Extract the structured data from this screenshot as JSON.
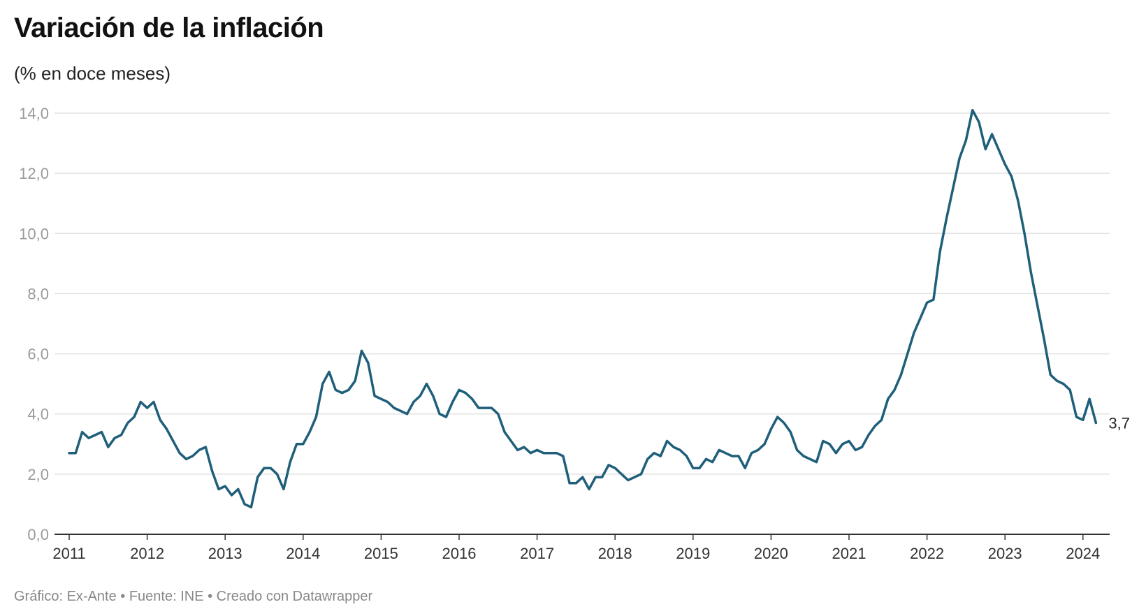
{
  "header": {
    "title": "Variación de la inflación",
    "subtitle": "(% en doce meses)"
  },
  "footer": {
    "source": "Gráfico: Ex-Ante • Fuente: INE • Creado con Datawrapper"
  },
  "colors": {
    "line": "#1f5f7a",
    "grid": "#e2e2e2",
    "axis": "#333333"
  },
  "chart_data": {
    "type": "line",
    "title": "Variación de la inflación",
    "subtitle": "(% en doce meses)",
    "ylabel": "",
    "xlabel": "",
    "ylim": [
      0,
      14
    ],
    "xlim": [
      "2011-01",
      "2024-03"
    ],
    "grid": true,
    "yticks": [
      "0,0",
      "2,0",
      "4,0",
      "6,0",
      "8,0",
      "10,0",
      "12,0",
      "14,0"
    ],
    "xticks": [
      "2011",
      "2012",
      "2013",
      "2014",
      "2015",
      "2016",
      "2017",
      "2018",
      "2019",
      "2020",
      "2021",
      "2022",
      "2023",
      "2024"
    ],
    "end_label": "3,7",
    "series": [
      {
        "start": "2011-01",
        "frequency": "monthly",
        "values": [
          2.7,
          2.7,
          3.4,
          3.2,
          3.3,
          3.4,
          2.9,
          3.2,
          3.3,
          3.7,
          3.9,
          4.4,
          4.2,
          4.4,
          3.8,
          3.5,
          3.1,
          2.7,
          2.5,
          2.6,
          2.8,
          2.9,
          2.1,
          1.5,
          1.6,
          1.3,
          1.5,
          1.0,
          0.9,
          1.9,
          2.2,
          2.2,
          2.0,
          1.5,
          2.4,
          3.0,
          3.0,
          3.4,
          3.9,
          5.0,
          5.4,
          4.8,
          4.7,
          4.8,
          5.1,
          6.1,
          5.7,
          4.6,
          4.5,
          4.4,
          4.2,
          4.1,
          4.0,
          4.4,
          4.6,
          5.0,
          4.6,
          4.0,
          3.9,
          4.4,
          4.8,
          4.7,
          4.5,
          4.2,
          4.2,
          4.2,
          4.0,
          3.4,
          3.1,
          2.8,
          2.9,
          2.7,
          2.8,
          2.7,
          2.7,
          2.7,
          2.6,
          1.7,
          1.7,
          1.9,
          1.5,
          1.9,
          1.9,
          2.3,
          2.2,
          2.0,
          1.8,
          1.9,
          2.0,
          2.5,
          2.7,
          2.6,
          3.1,
          2.9,
          2.8,
          2.6,
          2.2,
          2.2,
          2.5,
          2.4,
          2.8,
          2.7,
          2.6,
          2.6,
          2.2,
          2.7,
          2.8,
          3.0,
          3.5,
          3.9,
          3.7,
          3.4,
          2.8,
          2.6,
          2.5,
          2.4,
          3.1,
          3.0,
          2.7,
          3.0,
          3.1,
          2.8,
          2.9,
          3.3,
          3.6,
          3.8,
          4.5,
          4.8,
          5.3,
          6.0,
          6.7,
          7.2,
          7.7,
          7.8,
          9.4,
          10.5,
          11.5,
          12.5,
          13.1,
          14.1,
          13.7,
          12.8,
          13.3,
          12.8,
          12.3,
          11.9,
          11.1,
          10.0,
          8.7,
          7.6,
          6.5,
          5.3,
          5.1,
          5.0,
          4.8,
          3.9,
          3.8,
          4.5,
          3.7
        ]
      }
    ]
  }
}
